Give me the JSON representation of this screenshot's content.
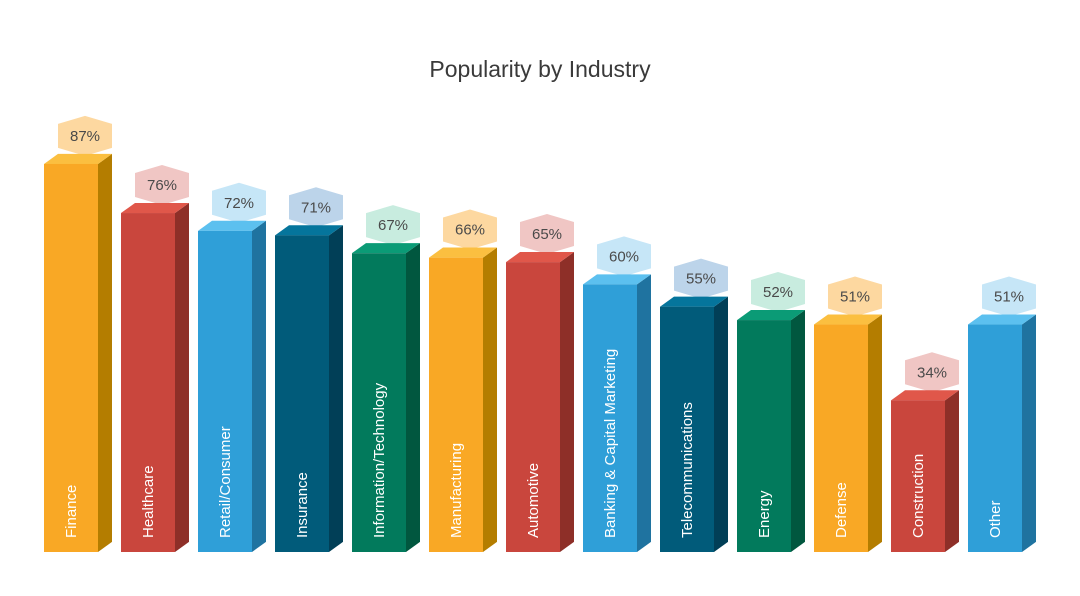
{
  "chart_data": {
    "type": "bar",
    "title": "Popularity by Industry",
    "xlabel": "",
    "ylabel": "",
    "categories": [
      "Finance",
      "Healthcare",
      "Retail/Consumer",
      "Insurance",
      "Information/Technology",
      "Manufacturing",
      "Automotive",
      "Banking & Capital Marketing",
      "Telecommunications",
      "Energy",
      "Defense",
      "Construction",
      "Other"
    ],
    "values": [
      87,
      76,
      72,
      71,
      67,
      66,
      65,
      60,
      55,
      52,
      51,
      34,
      51
    ],
    "value_labels": [
      "87%",
      "76%",
      "72%",
      "71%",
      "67%",
      "66%",
      "65%",
      "60%",
      "55%",
      "52%",
      "51%",
      "34%",
      "51%"
    ],
    "ylim": [
      0,
      100
    ],
    "grid": false,
    "legend": "none",
    "colors": [
      "#f9a825",
      "#c9463d",
      "#2f9fd8",
      "#015b7a",
      "#027a5c",
      "#f9a825",
      "#c9463d",
      "#2f9fd8",
      "#015b7a",
      "#027a5c",
      "#f9a825",
      "#c9463d",
      "#2f9fd8"
    ],
    "side_colors": [
      "#b47d00",
      "#8e2f28",
      "#1f73a0",
      "#013f57",
      "#01573f",
      "#b47d00",
      "#8e2f28",
      "#1f73a0",
      "#013f57",
      "#01573f",
      "#b47d00",
      "#8e2f28",
      "#1f73a0"
    ],
    "top_colors": [
      "#fbbf40",
      "#e0574a",
      "#5cc0ef",
      "#05759c",
      "#0b9b76",
      "#fbbf40",
      "#e0574a",
      "#5cc0ef",
      "#05759c",
      "#0b9b76",
      "#fbbf40",
      "#e0574a",
      "#5cc0ef"
    ],
    "badge_colors": [
      "#fdd8a0",
      "#f0c6c4",
      "#c6e6f7",
      "#bcd4ea",
      "#c8ecdf",
      "#fdd8a0",
      "#f0c6c4",
      "#c6e6f7",
      "#bcd4ea",
      "#c8ecdf",
      "#fdd8a0",
      "#f0c6c4",
      "#c6e6f7"
    ]
  }
}
